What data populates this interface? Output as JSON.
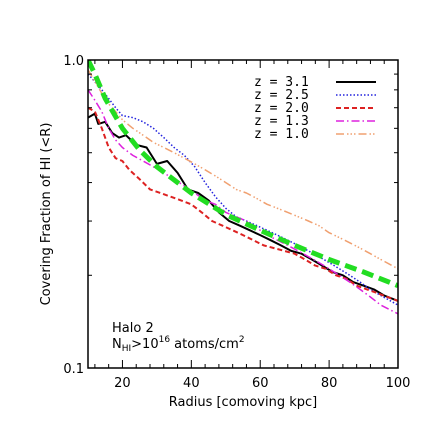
{
  "chart_data": {
    "type": "line",
    "title": "",
    "xlabel": "Radius [comoving kpc]",
    "ylabel": "Covering Fraction of HI (<R)",
    "xlim": [
      10,
      100
    ],
    "ylim": [
      0.1,
      1.0
    ],
    "yscale": "log",
    "x_ticks": [
      20,
      40,
      60,
      80,
      100
    ],
    "x_tick_labels": [
      "20",
      "40",
      "60",
      "80",
      "100"
    ],
    "y_ticks": [
      0.1,
      1.0
    ],
    "y_tick_labels": [
      "0.1",
      "1.0"
    ],
    "legend_position": "top-right",
    "annotations": {
      "halo": "Halo 2",
      "column_density": {
        "base": "N",
        "sub": "HI",
        "mid": ">10",
        "sup": "16",
        "tail": " atoms/cm",
        "sup2": "2"
      }
    },
    "series": [
      {
        "name": "z = 3.1",
        "color": "#000000",
        "dash": "",
        "width": 2,
        "x": [
          10,
          12,
          13,
          15,
          17,
          19,
          21,
          24,
          27,
          30,
          33,
          36,
          39,
          42,
          45,
          48,
          51,
          54,
          57,
          60,
          63,
          66,
          69,
          72,
          75,
          78,
          81,
          84,
          87,
          90,
          93,
          96,
          100
        ],
        "y": [
          0.65,
          0.67,
          0.62,
          0.63,
          0.58,
          0.56,
          0.57,
          0.53,
          0.52,
          0.46,
          0.47,
          0.43,
          0.38,
          0.37,
          0.35,
          0.32,
          0.3,
          0.29,
          0.28,
          0.27,
          0.26,
          0.25,
          0.24,
          0.235,
          0.225,
          0.215,
          0.205,
          0.2,
          0.19,
          0.185,
          0.18,
          0.172,
          0.165
        ]
      },
      {
        "name": "z = 2.5",
        "color": "#2222dd",
        "dash": "1.5,2",
        "width": 1.5,
        "x": [
          10,
          12,
          14,
          16,
          18,
          20,
          23,
          26,
          29,
          32,
          35,
          38,
          41,
          44,
          47,
          50,
          53,
          56,
          59,
          62,
          65,
          68,
          71,
          74,
          77,
          80,
          83,
          86,
          89,
          92,
          95,
          100
        ],
        "y": [
          0.9,
          0.85,
          0.8,
          0.75,
          0.7,
          0.66,
          0.65,
          0.63,
          0.6,
          0.56,
          0.52,
          0.49,
          0.45,
          0.4,
          0.36,
          0.33,
          0.31,
          0.3,
          0.29,
          0.28,
          0.27,
          0.26,
          0.25,
          0.24,
          0.23,
          0.22,
          0.21,
          0.2,
          0.19,
          0.18,
          0.172,
          0.16
        ]
      },
      {
        "name": "z = 2.0",
        "color": "#dd2222",
        "dash": "5,3",
        "width": 2,
        "x": [
          10,
          12,
          14,
          16,
          18,
          20,
          22,
          25,
          28,
          31,
          34,
          37,
          40,
          43,
          46,
          49,
          52,
          55,
          58,
          61,
          64,
          67,
          70,
          73,
          76,
          79,
          82,
          85,
          88,
          91,
          94,
          100
        ],
        "y": [
          0.7,
          0.68,
          0.6,
          0.52,
          0.48,
          0.47,
          0.44,
          0.41,
          0.38,
          0.37,
          0.36,
          0.35,
          0.34,
          0.32,
          0.3,
          0.29,
          0.28,
          0.27,
          0.26,
          0.25,
          0.245,
          0.24,
          0.235,
          0.225,
          0.215,
          0.21,
          0.2,
          0.195,
          0.185,
          0.18,
          0.175,
          0.165
        ]
      },
      {
        "name": "z = 1.3",
        "color": "#dd22dd",
        "dash": "8,3,1.5,3",
        "width": 1.5,
        "x": [
          10,
          12,
          14,
          16,
          18,
          20,
          23,
          26,
          29,
          32,
          35,
          38,
          41,
          44,
          47,
          50,
          53,
          56,
          59,
          62,
          65,
          68,
          71,
          74,
          77,
          80,
          83,
          86,
          89,
          92,
          95,
          100
        ],
        "y": [
          0.8,
          0.74,
          0.68,
          0.6,
          0.55,
          0.52,
          0.49,
          0.47,
          0.45,
          0.43,
          0.41,
          0.39,
          0.37,
          0.35,
          0.34,
          0.32,
          0.31,
          0.3,
          0.285,
          0.27,
          0.26,
          0.25,
          0.24,
          0.23,
          0.22,
          0.21,
          0.2,
          0.19,
          0.18,
          0.17,
          0.16,
          0.15
        ]
      },
      {
        "name": "z = 1.0",
        "color": "#f0a070",
        "dash": "8,3,1.5,2,1.5,2,1.5,3",
        "width": 1.5,
        "x": [
          10,
          12,
          14,
          16,
          18,
          20,
          23,
          26,
          29,
          32,
          35,
          38,
          41,
          44,
          47,
          50,
          53,
          56,
          59,
          62,
          65,
          68,
          71,
          74,
          77,
          80,
          83,
          86,
          89,
          92,
          95,
          100
        ],
        "y": [
          0.93,
          0.85,
          0.78,
          0.72,
          0.68,
          0.64,
          0.6,
          0.57,
          0.54,
          0.52,
          0.5,
          0.48,
          0.46,
          0.44,
          0.42,
          0.4,
          0.38,
          0.37,
          0.355,
          0.34,
          0.33,
          0.32,
          0.31,
          0.3,
          0.29,
          0.275,
          0.265,
          0.255,
          0.245,
          0.235,
          0.225,
          0.21
        ]
      },
      {
        "name": "",
        "color": "#22dd22",
        "dash": "12,6",
        "width": 5,
        "x": [
          10,
          12,
          15,
          20,
          25,
          30,
          40,
          50,
          60,
          70,
          80,
          90,
          100
        ],
        "y": [
          1.0,
          0.9,
          0.75,
          0.6,
          0.51,
          0.45,
          0.37,
          0.315,
          0.28,
          0.25,
          0.225,
          0.205,
          0.185
        ]
      }
    ]
  }
}
